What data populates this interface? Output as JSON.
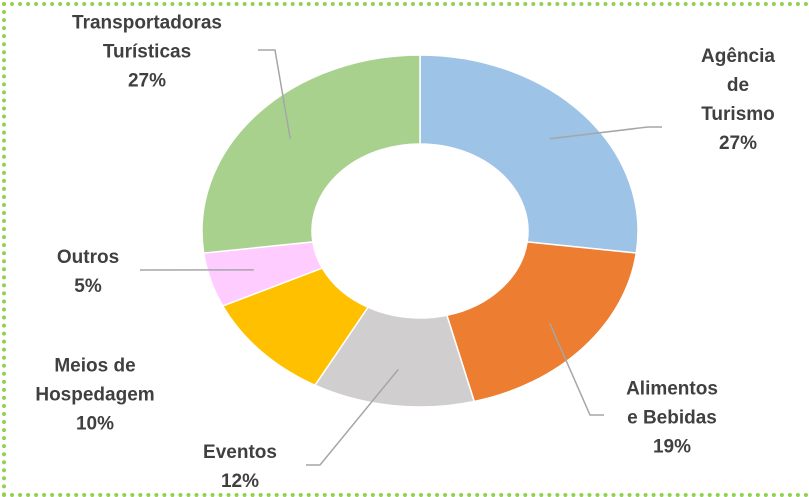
{
  "chart_data": {
    "type": "donut",
    "categories": [
      "Agência de\nTurismo",
      "Alimentos\ne Bebidas",
      "Eventos",
      "Meios de\nHospedagem",
      "Outros",
      "Transportadoras\nTurísticas"
    ],
    "values": [
      27,
      19,
      12,
      10,
      5,
      27
    ],
    "value_labels": [
      "27%",
      "19%",
      "12%",
      "10%",
      "5%",
      "27%"
    ],
    "colors": [
      "#9dc3e6",
      "#ed7d31",
      "#d0cece",
      "#ffc000",
      "#ffccff",
      "#a9d18e"
    ]
  }
}
